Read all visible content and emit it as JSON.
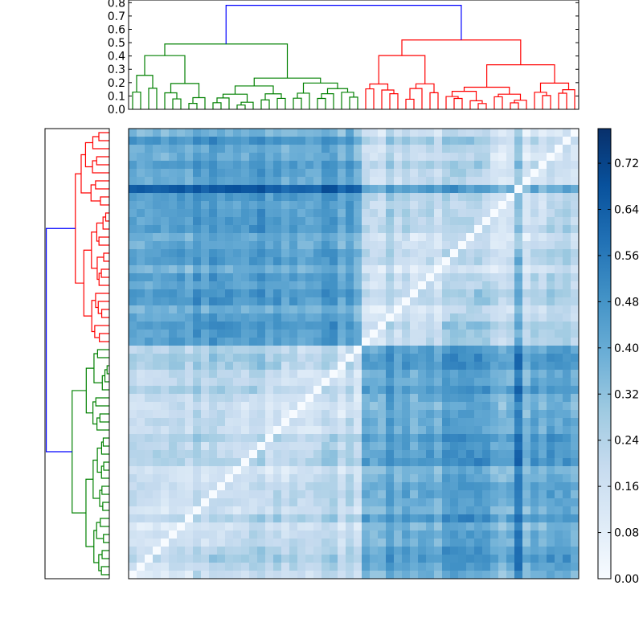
{
  "chart_data": {
    "type": "heatmap",
    "title": "",
    "heatmap": {
      "n": 56,
      "cmap": "Blues",
      "clim": [
        0.0,
        0.78
      ]
    },
    "colorbar": {
      "ticks": [
        "0.00",
        "0.08",
        "0.16",
        "0.24",
        "0.32",
        "0.40",
        "0.48",
        "0.56",
        "0.64",
        "0.72"
      ],
      "tick_values": [
        0.0,
        0.08,
        0.16,
        0.24,
        0.32,
        0.4,
        0.48,
        0.56,
        0.64,
        0.72
      ]
    },
    "top_dendrogram": {
      "yticks": [
        "0.0",
        "0.1",
        "0.2",
        "0.3",
        "0.4",
        "0.5",
        "0.6",
        "0.7",
        "0.8"
      ],
      "ytick_values": [
        0.0,
        0.1,
        0.2,
        0.3,
        0.4,
        0.5,
        0.6,
        0.7,
        0.8
      ],
      "ylim": [
        0.0,
        0.82
      ],
      "root_height": 0.78,
      "clusters": [
        {
          "color": "#008000",
          "leaves": 29,
          "root_height": 0.49
        },
        {
          "color": "#ff0000",
          "leaves": 27,
          "root_height": 0.52
        }
      ],
      "root_color": "#0000ff"
    },
    "left_dendrogram": {
      "order_top_to_bottom": [
        "red-cluster",
        "green-cluster"
      ],
      "clusters": [
        {
          "color": "#ff0000",
          "leaves": 27
        },
        {
          "color": "#008000",
          "leaves": 29
        }
      ],
      "root_color": "#0000ff"
    }
  }
}
